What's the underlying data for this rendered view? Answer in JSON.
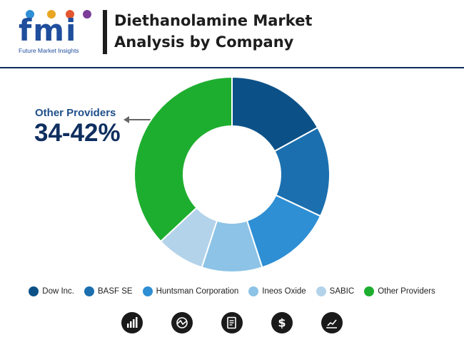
{
  "header": {
    "logo_text": "fmi",
    "logo_tagline": "Future Market Insights",
    "title_line1": "Diethanolamine Market",
    "title_line2": "Analysis by Company"
  },
  "callout": {
    "label": "Other Providers",
    "value": "34-42%"
  },
  "icons": [
    "bar-chart-icon",
    "line-trend-icon",
    "document-icon",
    "dollar-icon",
    "growth-chart-icon"
  ],
  "chart_data": {
    "type": "pie",
    "style": "donut",
    "title": "Diethanolamine Market Analysis by Company",
    "categories": [
      "Dow Inc.",
      "BASF SE",
      "Huntsman Corporation",
      "Ineos Oxide",
      "SABIC",
      "Other Providers"
    ],
    "values": [
      17,
      15,
      13,
      10,
      8,
      37
    ],
    "colors": [
      "#0b5187",
      "#1b6fae",
      "#2e8fd4",
      "#8cc3e6",
      "#b3d3ea",
      "#1eae2f"
    ],
    "annotation": "Other Providers 34-42%",
    "legend_position": "bottom"
  }
}
